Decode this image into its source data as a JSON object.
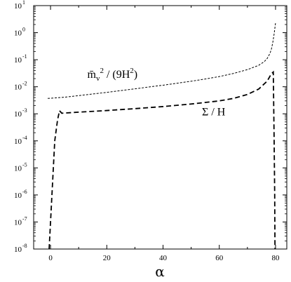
{
  "chart_data": {
    "type": "line",
    "title": "",
    "xlabel": "α",
    "ylabel": "",
    "xlim": [
      -6,
      84
    ],
    "ylim": [
      1e-08,
      10
    ],
    "yscale": "log",
    "xticks": [
      0,
      20,
      40,
      60,
      80
    ],
    "xtick_labels": [
      "0",
      "20",
      "40",
      "60",
      "80"
    ],
    "yticks": [
      1e-08,
      1e-07,
      1e-06,
      1e-05,
      0.0001,
      0.001,
      0.01,
      0.1,
      1,
      10
    ],
    "ytick_base": [
      "10",
      "10",
      "10",
      "10",
      "10",
      "10",
      "10",
      "10",
      "10",
      "10"
    ],
    "ytick_exponents": [
      "-8",
      "-7",
      "-6",
      "-5",
      "-4",
      "-3",
      "-2",
      "-1",
      "0",
      "1"
    ],
    "grid": false,
    "legend": "none",
    "annotations": [
      {
        "id": "mv",
        "text": "m̄v² / (9H²)",
        "base": "m̄",
        "sub": "v",
        "sup": "2",
        "mid": " / (9H",
        "sup2": "2",
        "end": ")",
        "x": 22,
        "y": 0.021
      },
      {
        "id": "sigma",
        "text": "Σ / H",
        "x": 58,
        "y": 0.00088
      }
    ],
    "series": [
      {
        "style": "short-dashed",
        "color": "#000000",
        "x": [
          -1,
          5,
          10,
          15,
          20,
          25,
          30,
          35,
          40,
          45,
          50,
          55,
          60,
          65,
          70,
          74,
          76,
          77,
          78,
          78.5,
          79,
          79.5,
          80
        ],
        "y": [
          0.0037,
          0.0041,
          0.0047,
          0.0054,
          0.0062,
          0.0072,
          0.0084,
          0.0098,
          0.0114,
          0.0135,
          0.016,
          0.0193,
          0.0238,
          0.031,
          0.043,
          0.062,
          0.085,
          0.11,
          0.17,
          0.24,
          0.42,
          0.9,
          2.3
        ]
      },
      {
        "style": "long-dashed",
        "color": "#000000",
        "x": [
          -0.5,
          0.5,
          1.5,
          2.5,
          3.2,
          4,
          10,
          20,
          30,
          40,
          50,
          60,
          65,
          70,
          74,
          77,
          78.5,
          79.2,
          79.5,
          79.7,
          79.8
        ],
        "y": [
          1e-08,
          1e-06,
          0.0001,
          0.0006,
          0.0013,
          0.00105,
          0.00115,
          0.00132,
          0.00155,
          0.00185,
          0.0023,
          0.003,
          0.0037,
          0.0052,
          0.0082,
          0.016,
          0.03,
          0.035,
          0.0001,
          1e-06,
          1e-08
        ]
      }
    ]
  }
}
